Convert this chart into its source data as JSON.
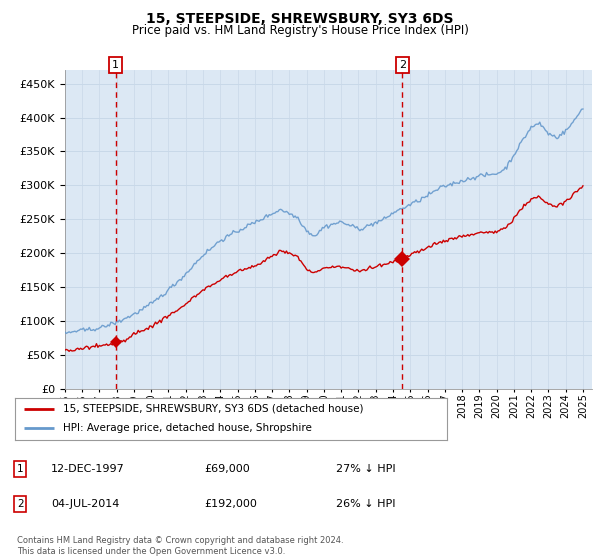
{
  "title": "15, STEEPSIDE, SHREWSBURY, SY3 6DS",
  "subtitle": "Price paid vs. HM Land Registry's House Price Index (HPI)",
  "ytick_values": [
    0,
    50000,
    100000,
    150000,
    200000,
    250000,
    300000,
    350000,
    400000,
    450000
  ],
  "ylim": [
    0,
    470000
  ],
  "xlim_start": 1995.0,
  "xlim_end": 2025.5,
  "hpi_color": "#6699cc",
  "price_color": "#cc0000",
  "vline_color": "#cc0000",
  "grid_color": "#c8d8e8",
  "bg_color": "#dce8f4",
  "sale1_x": 1997.95,
  "sale1_y": 69000,
  "sale2_x": 2014.54,
  "sale2_y": 192000,
  "legend_label1": "15, STEEPSIDE, SHREWSBURY, SY3 6DS (detached house)",
  "legend_label2": "HPI: Average price, detached house, Shropshire",
  "annotation1_label": "12-DEC-1997",
  "annotation1_price": "£69,000",
  "annotation1_hpi": "27% ↓ HPI",
  "annotation2_label": "04-JUL-2014",
  "annotation2_price": "£192,000",
  "annotation2_hpi": "26% ↓ HPI",
  "footer": "Contains HM Land Registry data © Crown copyright and database right 2024.\nThis data is licensed under the Open Government Licence v3.0."
}
